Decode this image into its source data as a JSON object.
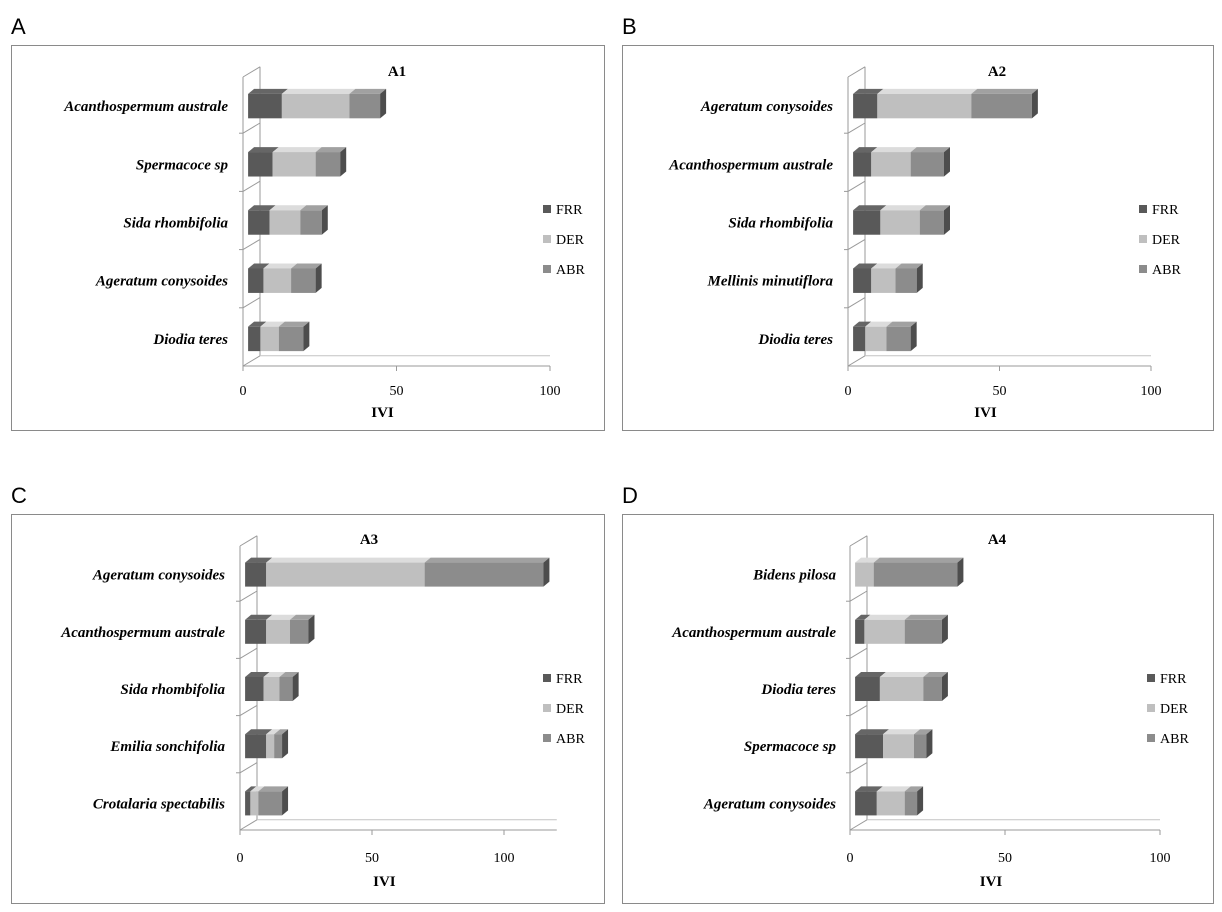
{
  "panels": [
    {
      "letter": "A"
    },
    {
      "letter": "B"
    },
    {
      "letter": "C"
    },
    {
      "letter": "D"
    }
  ],
  "series_colors": {
    "FRR": "#595959",
    "DER": "#bfbfbf",
    "ABR": "#8c8c8c"
  },
  "chart_data": [
    {
      "type": "bar",
      "orientation": "horizontal",
      "stacked": true,
      "title": "A1",
      "xlabel": "IVI",
      "xlim": [
        0,
        100
      ],
      "xticks": [
        0,
        50,
        100
      ],
      "legend": "right",
      "categories": [
        "Acanthospermum australe",
        "Spermacoce sp",
        "Sida rhombifolia",
        "Ageratum conysoides",
        "Diodia teres"
      ],
      "series": [
        {
          "name": "FRR",
          "values": [
            11,
            8,
            7,
            5,
            4
          ]
        },
        {
          "name": "DER",
          "values": [
            22,
            14,
            10,
            9,
            6
          ]
        },
        {
          "name": "ABR",
          "values": [
            10,
            8,
            7,
            8,
            8
          ]
        }
      ]
    },
    {
      "type": "bar",
      "orientation": "horizontal",
      "stacked": true,
      "title": "A2",
      "xlabel": "IVI",
      "xlim": [
        0,
        100
      ],
      "xticks": [
        0,
        50,
        100
      ],
      "legend": "right",
      "categories": [
        "Ageratum conysoides",
        "Acanthospermum australe",
        "Sida rhombifolia",
        "Mellinis minutiflora",
        "Diodia teres"
      ],
      "series": [
        {
          "name": "FRR",
          "values": [
            8,
            6,
            9,
            6,
            4
          ]
        },
        {
          "name": "DER",
          "values": [
            31,
            13,
            13,
            8,
            7
          ]
        },
        {
          "name": "ABR",
          "values": [
            20,
            11,
            8,
            7,
            8
          ]
        }
      ]
    },
    {
      "type": "bar",
      "orientation": "horizontal",
      "stacked": true,
      "title": "A3",
      "xlabel": "IVI",
      "xlim": [
        0,
        120
      ],
      "xticks": [
        0,
        50,
        100
      ],
      "legend": "right",
      "categories": [
        "Ageratum conysoides",
        "Acanthospermum australe",
        "Sida rhombifolia",
        "Emilia sonchifolia",
        "Crotalaria spectabilis"
      ],
      "series": [
        {
          "name": "FRR",
          "values": [
            8,
            8,
            7,
            8,
            2
          ]
        },
        {
          "name": "DER",
          "values": [
            60,
            9,
            6,
            3,
            3
          ]
        },
        {
          "name": "ABR",
          "values": [
            45,
            7,
            5,
            3,
            9
          ]
        }
      ]
    },
    {
      "type": "bar",
      "orientation": "horizontal",
      "stacked": true,
      "title": "A4",
      "xlabel": "IVI",
      "xlim": [
        0,
        100
      ],
      "xticks": [
        0,
        50,
        100
      ],
      "legend": "right",
      "categories": [
        "Bidens pilosa",
        "Acanthospermum australe",
        "Diodia teres",
        "Spermacoce sp",
        "Ageratum conysoides"
      ],
      "series": [
        {
          "name": "FRR",
          "values": [
            0,
            3,
            8,
            9,
            7
          ]
        },
        {
          "name": "DER",
          "values": [
            6,
            13,
            14,
            10,
            9
          ]
        },
        {
          "name": "ABR",
          "values": [
            27,
            12,
            6,
            4,
            4
          ]
        }
      ]
    }
  ]
}
